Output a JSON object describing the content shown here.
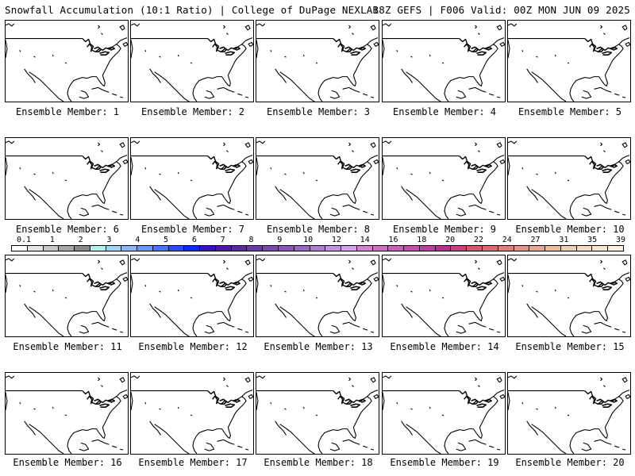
{
  "header": {
    "left": "Snowfall Accumulation (10:1 Ratio) | College of DuPage NEXLAB",
    "right": "18Z GEFS | F006 Valid: 00Z MON JUN 09 2025"
  },
  "panel_label_prefix": "Ensemble Member: ",
  "members": [
    1,
    2,
    3,
    4,
    5,
    6,
    7,
    8,
    9,
    10,
    11,
    12,
    13,
    14,
    15,
    16,
    17,
    18,
    19,
    20
  ],
  "colorbar": {
    "labels": [
      "0.1",
      "1",
      "2",
      "3",
      "4",
      "5",
      "6",
      "7",
      "8",
      "9",
      "10",
      "12",
      "14",
      "16",
      "18",
      "20",
      "22",
      "24",
      "27",
      "31",
      "35",
      "39"
    ],
    "colors": [
      "#ffffff",
      "#e6e6e6",
      "#c8c8c8",
      "#a6a6a6",
      "#888888",
      "#b4f0f0",
      "#a0d4f4",
      "#8cb6f6",
      "#6c96f8",
      "#4a72fa",
      "#2a4cfa",
      "#0a2afa",
      "#3a10c0",
      "#4c1aa6",
      "#5c2aa0",
      "#6c3aa8",
      "#7c48b0",
      "#8c56b8",
      "#9c66c6",
      "#b07cd6",
      "#c490e0",
      "#d6a4ea",
      "#d680d0",
      "#d070c4",
      "#ca60b8",
      "#c450aa",
      "#be409c",
      "#b83090",
      "#c8407e",
      "#d4586e",
      "#dc6c70",
      "#e08078",
      "#e49484",
      "#e8a890",
      "#ecbca0",
      "#f0d0b0",
      "#f4dcc0",
      "#f8e6d0",
      "#fcf0e2"
    ]
  }
}
